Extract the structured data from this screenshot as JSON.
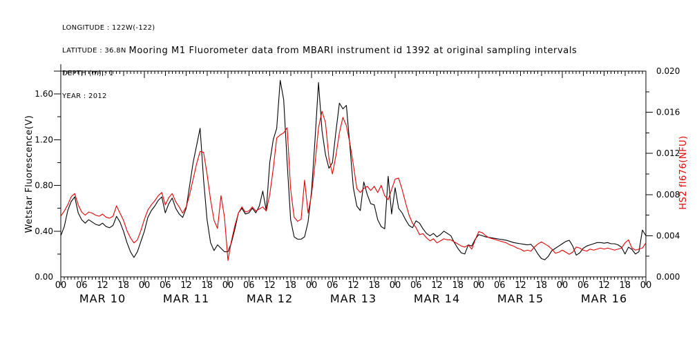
{
  "header": {
    "lines": [
      "LONGITUDE : 122W(-122)",
      "LATITUDE : 36.8N",
      "DEPTH (m) : 1",
      "YEAR : 2012"
    ]
  },
  "chart_data": {
    "type": "line",
    "title": "Mooring M1 Fluorometer data from MBARI instrument id 1392 at original sampling intervals",
    "x_axis": {
      "start": "MAR 10 00:00",
      "step_hours": 1,
      "total_hours": 168,
      "day_labels": [
        "MAR 10",
        "MAR 11",
        "MAR 12",
        "MAR 13",
        "MAR 14",
        "MAR 15",
        "MAR 16"
      ],
      "hour_tick_labels": [
        "00",
        "06",
        "12",
        "18"
      ],
      "end_hour_label": "00"
    },
    "y_left": {
      "label": "Wetstar Fluorescence(V)",
      "range": [
        0.0,
        1.8
      ],
      "minor_step": 0.2,
      "ticks": [
        {
          "value": 0.0,
          "label": "0.00"
        },
        {
          "value": 0.4,
          "label": "0.40"
        },
        {
          "value": 0.8,
          "label": "0.80"
        },
        {
          "value": 1.2,
          "label": "1.20"
        },
        {
          "value": 1.6,
          "label": "1.60"
        }
      ]
    },
    "y_right": {
      "label": "HS2 fl676(NFU)",
      "label_color": "#e60000",
      "range": [
        0.0,
        0.02
      ],
      "minor_step": 0.002,
      "ticks": [
        {
          "value": 0.0,
          "label": "0.000"
        },
        {
          "value": 0.004,
          "label": "0.004"
        },
        {
          "value": 0.008,
          "label": "0.008"
        },
        {
          "value": 0.012,
          "label": "0.012"
        },
        {
          "value": 0.016,
          "label": "0.016"
        },
        {
          "value": 0.02,
          "label": "0.020"
        }
      ]
    },
    "series": [
      {
        "name": "Wetstar Fluorescence(V)",
        "axis": "left",
        "color": "#000000",
        "values": [
          0.36,
          0.44,
          0.58,
          0.66,
          0.7,
          0.56,
          0.5,
          0.47,
          0.5,
          0.48,
          0.46,
          0.45,
          0.47,
          0.44,
          0.43,
          0.45,
          0.53,
          0.48,
          0.4,
          0.3,
          0.22,
          0.17,
          0.22,
          0.31,
          0.4,
          0.52,
          0.58,
          0.62,
          0.67,
          0.7,
          0.56,
          0.64,
          0.69,
          0.6,
          0.55,
          0.52,
          0.6,
          0.8,
          1.0,
          1.15,
          1.3,
          0.85,
          0.5,
          0.3,
          0.23,
          0.28,
          0.25,
          0.22,
          0.22,
          0.3,
          0.42,
          0.56,
          0.6,
          0.55,
          0.56,
          0.6,
          0.56,
          0.62,
          0.75,
          0.58,
          1.0,
          1.2,
          1.3,
          1.72,
          1.55,
          1.0,
          0.5,
          0.35,
          0.33,
          0.33,
          0.35,
          0.48,
          0.75,
          1.2,
          1.7,
          1.28,
          1.07,
          0.95,
          1.0,
          1.27,
          1.52,
          1.47,
          1.5,
          1.15,
          0.78,
          0.62,
          0.58,
          0.83,
          0.72,
          0.64,
          0.63,
          0.5,
          0.44,
          0.42,
          0.88,
          0.55,
          0.78,
          0.6,
          0.56,
          0.5,
          0.45,
          0.43,
          0.49,
          0.47,
          0.42,
          0.38,
          0.36,
          0.38,
          0.35,
          0.37,
          0.4,
          0.38,
          0.36,
          0.3,
          0.25,
          0.21,
          0.2,
          0.28,
          0.27,
          0.33,
          0.37,
          0.36,
          0.35,
          0.345,
          0.34,
          0.335,
          0.33,
          0.325,
          0.32,
          0.31,
          0.3,
          0.295,
          0.29,
          0.285,
          0.28,
          0.285,
          0.25,
          0.2,
          0.16,
          0.15,
          0.18,
          0.23,
          0.25,
          0.27,
          0.29,
          0.31,
          0.32,
          0.27,
          0.19,
          0.21,
          0.25,
          0.27,
          0.28,
          0.29,
          0.3,
          0.3,
          0.295,
          0.3,
          0.29,
          0.29,
          0.28,
          0.26,
          0.2,
          0.26,
          0.24,
          0.2,
          0.22,
          0.41,
          0.36
        ]
      },
      {
        "name": "HS2 fl676(NFU)",
        "axis": "right",
        "color": "#e60000",
        "values": [
          0.0059,
          0.0064,
          0.007,
          0.0078,
          0.0081,
          0.007,
          0.0063,
          0.006,
          0.0063,
          0.0062,
          0.006,
          0.0059,
          0.0061,
          0.0058,
          0.0057,
          0.0059,
          0.0069,
          0.0062,
          0.0055,
          0.0045,
          0.0038,
          0.0033,
          0.0036,
          0.0045,
          0.0056,
          0.0065,
          0.007,
          0.0074,
          0.0079,
          0.0082,
          0.007,
          0.0077,
          0.0081,
          0.0073,
          0.0068,
          0.0062,
          0.0068,
          0.008,
          0.0095,
          0.011,
          0.0122,
          0.0121,
          0.01,
          0.0075,
          0.0055,
          0.0047,
          0.0079,
          0.0058,
          0.0016,
          0.0035,
          0.005,
          0.0062,
          0.0068,
          0.0063,
          0.0064,
          0.0068,
          0.0064,
          0.0066,
          0.0068,
          0.0064,
          0.008,
          0.0105,
          0.0135,
          0.0138,
          0.014,
          0.0145,
          0.0085,
          0.0058,
          0.0054,
          0.0056,
          0.0094,
          0.0062,
          0.008,
          0.011,
          0.0145,
          0.0161,
          0.015,
          0.0115,
          0.01,
          0.0118,
          0.014,
          0.0155,
          0.0147,
          0.013,
          0.0109,
          0.0086,
          0.0082,
          0.0086,
          0.0088,
          0.0084,
          0.0088,
          0.0082,
          0.0089,
          0.0079,
          0.0075,
          0.0085,
          0.0095,
          0.0096,
          0.0085,
          0.0072,
          0.006,
          0.0052,
          0.0048,
          0.0041,
          0.0042,
          0.0038,
          0.0035,
          0.0037,
          0.0033,
          0.0035,
          0.0037,
          0.0036,
          0.0036,
          0.0034,
          0.0032,
          0.003,
          0.0029,
          0.0031,
          0.0027,
          0.0036,
          0.0044,
          0.0043,
          0.004,
          0.0038,
          0.0037,
          0.0036,
          0.0035,
          0.0034,
          0.0033,
          0.0031,
          0.003,
          0.0028,
          0.0027,
          0.0025,
          0.0026,
          0.0025,
          0.0029,
          0.0032,
          0.0034,
          0.0032,
          0.003,
          0.0027,
          0.0023,
          0.0024,
          0.0026,
          0.0024,
          0.0022,
          0.0024,
          0.0029,
          0.0028,
          0.0026,
          0.0025,
          0.0027,
          0.0026,
          0.0027,
          0.0028,
          0.0027,
          0.0028,
          0.0027,
          0.0026,
          0.0027,
          0.0028,
          0.0033,
          0.0036,
          0.0028,
          0.0026,
          0.0027,
          0.0028,
          0.0033
        ]
      }
    ]
  }
}
